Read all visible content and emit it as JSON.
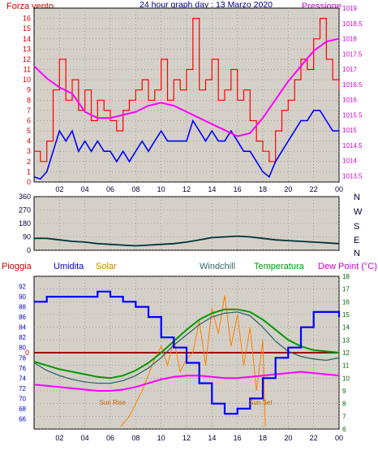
{
  "header": {
    "left": "Forza vento",
    "center": "24 hour graph day : 13 Marzo 2020",
    "right": "Pressione"
  },
  "colors": {
    "bg": "#ffffff",
    "plot": "#d4d0c8",
    "grid": "#808080",
    "wind": "#ff0000",
    "gust": "#0000ff",
    "pressure": "#ff00ff",
    "direction": "#003333",
    "humidity": "#0000ff",
    "solar": "#ff8000",
    "windchill": "#336666",
    "temperature": "#009900",
    "dewpoint": "#ff00ff",
    "rain": "#990000",
    "axis_left": "#cc0000",
    "axis_right": "#cc00cc",
    "axis_hum": "#0000cc",
    "axis_temp": "#006600"
  },
  "x_ticks": [
    "02",
    "04",
    "06",
    "08",
    "10",
    "12",
    "14",
    "16",
    "18",
    "20",
    "22",
    "00"
  ],
  "top_chart": {
    "type": "line",
    "xlim": [
      0,
      24
    ],
    "wind_ylim": [
      0,
      17
    ],
    "wind_ticks": [
      "0",
      "1",
      "2",
      "3",
      "4",
      "5",
      "6",
      "7",
      "8",
      "9",
      "10",
      "11",
      "12",
      "13",
      "14",
      "15",
      "16"
    ],
    "pressure_ylim": [
      1013.3,
      1019
    ],
    "pressure_ticks": [
      "1013.5",
      "1014",
      "1014.5",
      "1015",
      "1015.5",
      "1016",
      "1016.5",
      "1017",
      "1017.5",
      "1018",
      "1018.5",
      "1019"
    ],
    "wind_gust": {
      "x": [
        0,
        0.5,
        1,
        1.5,
        2,
        2.5,
        3,
        3.5,
        4,
        4.5,
        5,
        5.5,
        6,
        6.5,
        7,
        7.5,
        8,
        8.5,
        9,
        9.5,
        10,
        10.5,
        11,
        11.5,
        12,
        12.5,
        13,
        13.5,
        14,
        14.5,
        15,
        15.5,
        16,
        16.5,
        17,
        17.5,
        18,
        18.5,
        19,
        19.5,
        20,
        20.5,
        21,
        21.5,
        22,
        22.5,
        23,
        23.5,
        24
      ],
      "y": [
        3,
        2,
        4,
        9,
        12,
        8,
        10,
        7,
        9,
        6,
        8,
        7,
        6,
        5,
        7,
        8,
        9,
        10,
        8,
        9,
        12,
        8,
        10,
        9,
        11,
        16,
        9,
        10,
        12,
        8,
        9,
        11,
        8,
        9,
        6,
        4,
        3,
        2,
        5,
        7,
        8,
        10,
        12,
        11,
        14,
        16,
        12,
        10,
        9
      ]
    },
    "wind_avg": {
      "x": [
        0,
        0.5,
        1,
        1.5,
        2,
        2.5,
        3,
        3.5,
        4,
        4.5,
        5,
        5.5,
        6,
        6.5,
        7,
        7.5,
        8,
        8.5,
        9,
        9.5,
        10,
        10.5,
        11,
        11.5,
        12,
        12.5,
        13,
        13.5,
        14,
        14.5,
        15,
        15.5,
        16,
        16.5,
        17,
        17.5,
        18,
        18.5,
        19,
        19.5,
        20,
        20.5,
        21,
        21.5,
        22,
        22.5,
        23,
        23.5,
        24
      ],
      "y": [
        0.5,
        0.3,
        1,
        3,
        5,
        4,
        5,
        3,
        4,
        3,
        4,
        3,
        3,
        2,
        3,
        2,
        3,
        4,
        3,
        4,
        5,
        4,
        4,
        4,
        4,
        6,
        5,
        4,
        5,
        4,
        4,
        5,
        4,
        3,
        3,
        2,
        1,
        0.5,
        2,
        3,
        4,
        5,
        6,
        6,
        7,
        7,
        6,
        5,
        5
      ]
    },
    "pressure": {
      "x": [
        0,
        1,
        2,
        3,
        4,
        5,
        6,
        7,
        8,
        9,
        10,
        11,
        12,
        13,
        14,
        15,
        16,
        17,
        18,
        19,
        20,
        21,
        22,
        23,
        24
      ],
      "y": [
        1017.1,
        1016.7,
        1016.4,
        1016.2,
        1015.6,
        1015.4,
        1015.4,
        1015.5,
        1015.6,
        1015.8,
        1015.9,
        1015.8,
        1015.6,
        1015.4,
        1015.2,
        1015.0,
        1014.8,
        1014.9,
        1015.4,
        1016.0,
        1016.6,
        1017.1,
        1017.6,
        1017.9,
        1018.0
      ]
    }
  },
  "dir_chart": {
    "type": "line",
    "ylim": [
      0,
      360
    ],
    "ticks": [
      "0",
      "90",
      "180",
      "270",
      "360"
    ],
    "compass": [
      "N",
      "W",
      "S",
      "E",
      "N"
    ],
    "series": {
      "x": [
        0,
        1,
        2,
        3,
        4,
        5,
        6,
        7,
        8,
        9,
        10,
        11,
        12,
        13,
        14,
        15,
        16,
        17,
        18,
        19,
        20,
        21,
        22,
        23,
        24
      ],
      "y": [
        80,
        80,
        70,
        60,
        55,
        45,
        40,
        35,
        30,
        35,
        40,
        45,
        55,
        70,
        85,
        90,
        95,
        90,
        80,
        70,
        65,
        60,
        55,
        50,
        45
      ]
    }
  },
  "bottom_chart": {
    "type": "line",
    "labels": {
      "pioggia": "Pioggia",
      "umidita": "Umidita",
      "solar": "Solar",
      "windchill": "Windchill",
      "temperatura": "Temperatura",
      "dewpoint": "Dew Point (°C)"
    },
    "hum_ylim": [
      64,
      94
    ],
    "hum_ticks": [
      "66",
      "68",
      "70",
      "72",
      "74",
      "76",
      "78",
      "80",
      "82",
      "84",
      "86",
      "88",
      "90",
      "92"
    ],
    "temp_ylim": [
      6,
      18
    ],
    "temp_ticks": [
      "6",
      "7",
      "8",
      "9",
      "10",
      "11",
      "12",
      "13",
      "14",
      "15",
      "16",
      "17",
      "18"
    ],
    "rain_label": "0",
    "sunrise_label": "Sun Rise",
    "sunset_label": "Sun Set",
    "sunrise_x": 6.8,
    "sunset_x": 18.2,
    "humidity": {
      "x": [
        0,
        1,
        2,
        3,
        4,
        5,
        5.5,
        6,
        7,
        8,
        9,
        10,
        11,
        12,
        13,
        14,
        15,
        16,
        17,
        18,
        19,
        20,
        21,
        22,
        23,
        24
      ],
      "y": [
        89,
        90,
        90,
        90,
        90,
        91,
        91,
        90,
        89,
        88,
        86,
        82,
        80,
        77,
        73,
        69,
        67,
        68,
        70,
        74,
        78,
        80,
        84,
        87,
        87,
        86
      ]
    },
    "temperature": {
      "x": [
        0,
        1,
        2,
        3,
        4,
        5,
        6,
        7,
        8,
        9,
        10,
        11,
        12,
        13,
        14,
        15,
        16,
        17,
        18,
        19,
        20,
        21,
        22,
        23,
        24
      ],
      "y": [
        11.3,
        11.0,
        10.7,
        10.5,
        10.3,
        10.1,
        10.0,
        10.2,
        10.6,
        11.2,
        12.0,
        12.9,
        13.8,
        14.6,
        15.1,
        15.4,
        15.4,
        15.2,
        14.6,
        13.8,
        13.0,
        12.5,
        12.2,
        12.1,
        12.0
      ]
    },
    "windchill": {
      "x": [
        0,
        1,
        2,
        3,
        4,
        5,
        6,
        7,
        8,
        9,
        10,
        11,
        12,
        13,
        14,
        15,
        16,
        17,
        18,
        19,
        20,
        21,
        22,
        23,
        24
      ],
      "y": [
        11.2,
        10.6,
        10.2,
        9.9,
        9.7,
        9.6,
        9.6,
        9.8,
        10.2,
        10.8,
        11.6,
        12.6,
        13.4,
        14.2,
        14.8,
        15.1,
        15.2,
        14.9,
        14.0,
        12.9,
        12.1,
        11.7,
        11.5,
        11.4,
        11.6
      ]
    },
    "dewpoint": {
      "x": [
        0,
        1,
        2,
        3,
        4,
        5,
        6,
        7,
        8,
        9,
        10,
        11,
        12,
        13,
        14,
        15,
        16,
        17,
        18,
        19,
        20,
        21,
        22,
        23,
        24
      ],
      "y": [
        9.5,
        9.4,
        9.3,
        9.2,
        9.1,
        9.0,
        9.0,
        9.1,
        9.3,
        9.6,
        9.9,
        10.1,
        10.2,
        10.2,
        10.1,
        10.0,
        10.0,
        10.1,
        10.2,
        10.3,
        10.4,
        10.5,
        10.4,
        10.3,
        10.2
      ]
    },
    "solar": {
      "x": [
        6.8,
        7.5,
        8.5,
        9.5,
        10,
        10.5,
        11,
        11.5,
        12,
        12.5,
        13,
        13.5,
        14,
        14.5,
        15,
        15.5,
        16,
        16.5,
        17,
        17.5,
        18,
        18.2
      ],
      "y": [
        6.2,
        7.0,
        9.0,
        11.5,
        12.5,
        11.0,
        13.0,
        10.5,
        11.5,
        12.0,
        14.5,
        11.0,
        15.5,
        13.5,
        16.5,
        12.5,
        15.0,
        11.0,
        14.0,
        9.0,
        13.0,
        6.2
      ]
    }
  }
}
